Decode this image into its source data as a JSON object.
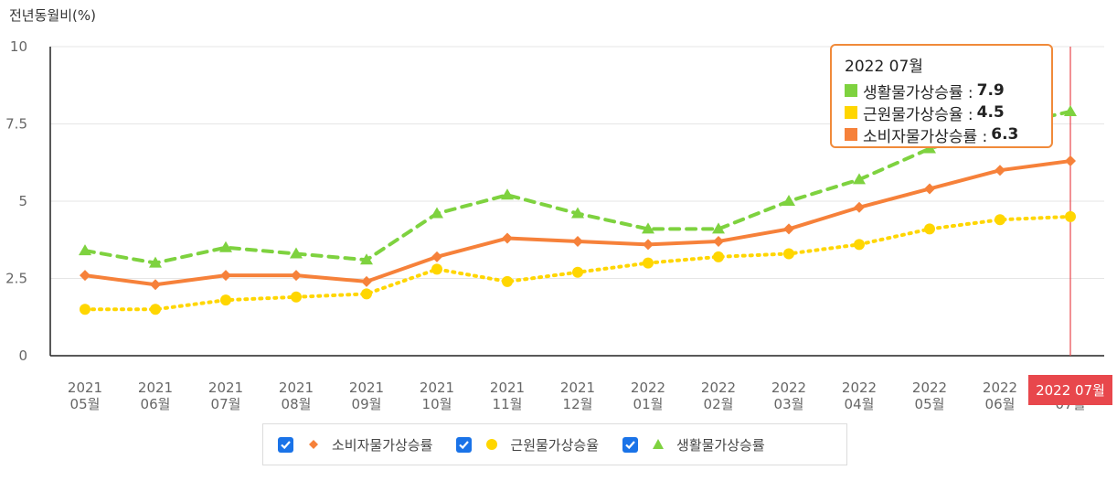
{
  "y_unit_label": "전년동월비(%)",
  "chart_data": {
    "type": "line",
    "categories": [
      [
        "2021",
        "05월"
      ],
      [
        "2021",
        "06월"
      ],
      [
        "2021",
        "07월"
      ],
      [
        "2021",
        "08월"
      ],
      [
        "2021",
        "09월"
      ],
      [
        "2021",
        "10월"
      ],
      [
        "2021",
        "11월"
      ],
      [
        "2021",
        "12월"
      ],
      [
        "2022",
        "01월"
      ],
      [
        "2022",
        "02월"
      ],
      [
        "2022",
        "03월"
      ],
      [
        "2022",
        "04월"
      ],
      [
        "2022",
        "05월"
      ],
      [
        "2022",
        "06월"
      ],
      [
        "2022",
        "07월"
      ]
    ],
    "ylim": [
      0,
      10
    ],
    "yticks": [
      0,
      2.5,
      5,
      7.5,
      10
    ],
    "ytick_labels": [
      "0",
      "2.5",
      "5",
      "7.5",
      "10"
    ],
    "series": [
      {
        "name": "소비자물가상승률",
        "color": "#f6813a",
        "line_style": "solid",
        "marker": "diamond",
        "values": [
          2.6,
          2.3,
          2.6,
          2.6,
          2.4,
          3.2,
          3.8,
          3.7,
          3.6,
          3.7,
          4.1,
          4.8,
          5.4,
          6.0,
          6.3
        ]
      },
      {
        "name": "근원물가상승율",
        "color": "#ffd600",
        "line_style": "dotted",
        "marker": "circle",
        "values": [
          1.5,
          1.5,
          1.8,
          1.9,
          2.0,
          2.8,
          2.4,
          2.7,
          3.0,
          3.2,
          3.3,
          3.6,
          4.1,
          4.4,
          4.5
        ]
      },
      {
        "name": "생활물가상승률",
        "color": "#7ed23f",
        "line_style": "dashed",
        "marker": "triangle",
        "values": [
          3.4,
          3.0,
          3.5,
          3.3,
          3.1,
          4.6,
          5.2,
          4.6,
          4.1,
          4.1,
          5.0,
          5.7,
          6.7,
          7.4,
          7.9
        ]
      }
    ],
    "highlight": {
      "index": 14,
      "label": "2022 07월",
      "color": "#e8474c"
    },
    "grid": true
  },
  "tooltip": {
    "title": "2022 07월",
    "rows": [
      {
        "label": "생활물가상승률 :",
        "value": "7.9",
        "color": "#7ed23f"
      },
      {
        "label": "근원물가상승율 :",
        "value": "4.5",
        "color": "#ffd600"
      },
      {
        "label": "소비자물가상승률 :",
        "value": "6.3",
        "color": "#f6813a"
      }
    ]
  },
  "legend": [
    {
      "label": "소비자물가상승률",
      "marker": "diamond-icon",
      "color": "#f6813a"
    },
    {
      "label": "근원물가상승율",
      "marker": "circle-icon",
      "color": "#ffd600"
    },
    {
      "label": "생활물가상승률",
      "marker": "triangle-icon",
      "color": "#7ed23f"
    }
  ]
}
